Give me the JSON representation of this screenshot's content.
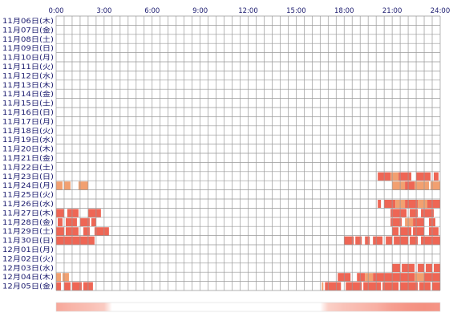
{
  "chart_data": {
    "type": "heatmap",
    "x_unit": "hour",
    "xlim": [
      0,
      24
    ],
    "x_ticks": [
      "0:00",
      "3:00",
      "6:00",
      "9:00",
      "12:00",
      "15:00",
      "18:00",
      "21:00",
      "24:00"
    ],
    "rows": [
      "11月06日(木)",
      "11月07日(金)",
      "11月08日(土)",
      "11月09日(日)",
      "11月10日(月)",
      "11月11日(火)",
      "11月12日(水)",
      "11月13日(木)",
      "11月14日(金)",
      "11月15日(土)",
      "11月16日(日)",
      "11月17日(月)",
      "11月18日(火)",
      "11月19日(水)",
      "11月20日(木)",
      "11月21日(金)",
      "11月22日(土)",
      "11月23日(日)",
      "11月24日(月)",
      "11月25日(火)",
      "11月26日(水)",
      "11月27日(木)",
      "11月28日(金)",
      "11月29日(土)",
      "11月30日(日)",
      "12月01日(月)",
      "12月02日(火)",
      "12月03日(水)",
      "12月04日(木)",
      "12月05日(金)"
    ],
    "colors": {
      "strong": "#ee6655",
      "light": "#f2a070",
      "grid": "#999999",
      "label": "#1a1a6e",
      "summary_low": "#fde6e0",
      "summary_high": "#f48c7c"
    },
    "activity": [
      {
        "row": 17,
        "start": 20.1,
        "end": 20.9,
        "level": "strong"
      },
      {
        "row": 17,
        "start": 20.9,
        "end": 21.4,
        "level": "light"
      },
      {
        "row": 17,
        "start": 21.4,
        "end": 22.2,
        "level": "strong"
      },
      {
        "row": 17,
        "start": 22.5,
        "end": 23.4,
        "level": "strong"
      },
      {
        "row": 17,
        "start": 23.6,
        "end": 23.9,
        "level": "strong"
      },
      {
        "row": 18,
        "start": 0.0,
        "end": 0.4,
        "level": "light"
      },
      {
        "row": 18,
        "start": 0.5,
        "end": 0.9,
        "level": "light"
      },
      {
        "row": 18,
        "start": 1.4,
        "end": 2.0,
        "level": "light"
      },
      {
        "row": 18,
        "start": 21.0,
        "end": 21.8,
        "level": "light"
      },
      {
        "row": 18,
        "start": 21.8,
        "end": 22.4,
        "level": "strong"
      },
      {
        "row": 18,
        "start": 22.4,
        "end": 23.3,
        "level": "light"
      },
      {
        "row": 18,
        "start": 23.4,
        "end": 24.0,
        "level": "light"
      },
      {
        "row": 20,
        "start": 20.1,
        "end": 20.3,
        "level": "strong"
      },
      {
        "row": 20,
        "start": 20.5,
        "end": 21.2,
        "level": "strong"
      },
      {
        "row": 20,
        "start": 21.2,
        "end": 21.8,
        "level": "light"
      },
      {
        "row": 20,
        "start": 21.8,
        "end": 22.6,
        "level": "strong"
      },
      {
        "row": 20,
        "start": 22.6,
        "end": 23.2,
        "level": "light"
      },
      {
        "row": 20,
        "start": 23.2,
        "end": 24.0,
        "level": "strong"
      },
      {
        "row": 21,
        "start": 0.0,
        "end": 0.5,
        "level": "strong"
      },
      {
        "row": 21,
        "start": 0.7,
        "end": 1.4,
        "level": "strong"
      },
      {
        "row": 21,
        "start": 2.0,
        "end": 2.8,
        "level": "strong"
      },
      {
        "row": 21,
        "start": 20.9,
        "end": 21.9,
        "level": "strong"
      },
      {
        "row": 21,
        "start": 22.1,
        "end": 22.6,
        "level": "strong"
      },
      {
        "row": 21,
        "start": 22.8,
        "end": 23.6,
        "level": "strong"
      },
      {
        "row": 22,
        "start": 0.1,
        "end": 0.4,
        "level": "strong"
      },
      {
        "row": 22,
        "start": 0.6,
        "end": 1.3,
        "level": "strong"
      },
      {
        "row": 22,
        "start": 1.5,
        "end": 2.1,
        "level": "strong"
      },
      {
        "row": 22,
        "start": 2.2,
        "end": 2.5,
        "level": "strong"
      },
      {
        "row": 22,
        "start": 20.9,
        "end": 21.6,
        "level": "strong"
      },
      {
        "row": 22,
        "start": 21.8,
        "end": 22.3,
        "level": "light"
      },
      {
        "row": 22,
        "start": 22.3,
        "end": 23.0,
        "level": "strong"
      },
      {
        "row": 22,
        "start": 23.3,
        "end": 23.7,
        "level": "strong"
      },
      {
        "row": 23,
        "start": 0.0,
        "end": 0.5,
        "level": "strong"
      },
      {
        "row": 23,
        "start": 0.6,
        "end": 1.4,
        "level": "strong"
      },
      {
        "row": 23,
        "start": 1.7,
        "end": 2.1,
        "level": "strong"
      },
      {
        "row": 23,
        "start": 2.4,
        "end": 3.3,
        "level": "strong"
      },
      {
        "row": 23,
        "start": 21.0,
        "end": 21.4,
        "level": "strong"
      },
      {
        "row": 23,
        "start": 21.5,
        "end": 22.2,
        "level": "strong"
      },
      {
        "row": 23,
        "start": 22.3,
        "end": 23.0,
        "level": "strong"
      },
      {
        "row": 23,
        "start": 23.3,
        "end": 23.9,
        "level": "strong"
      },
      {
        "row": 24,
        "start": 0.0,
        "end": 2.4,
        "level": "strong"
      },
      {
        "row": 24,
        "start": 18.0,
        "end": 18.6,
        "level": "strong"
      },
      {
        "row": 24,
        "start": 18.7,
        "end": 19.1,
        "level": "strong"
      },
      {
        "row": 24,
        "start": 19.3,
        "end": 19.6,
        "level": "strong"
      },
      {
        "row": 24,
        "start": 19.8,
        "end": 20.4,
        "level": "strong"
      },
      {
        "row": 24,
        "start": 20.6,
        "end": 21.0,
        "level": "strong"
      },
      {
        "row": 24,
        "start": 21.1,
        "end": 22.0,
        "level": "strong"
      },
      {
        "row": 24,
        "start": 22.1,
        "end": 22.6,
        "level": "strong"
      },
      {
        "row": 24,
        "start": 22.8,
        "end": 24.0,
        "level": "strong"
      },
      {
        "row": 27,
        "start": 21.0,
        "end": 21.5,
        "level": "strong"
      },
      {
        "row": 27,
        "start": 21.6,
        "end": 22.0,
        "level": "strong"
      },
      {
        "row": 27,
        "start": 22.0,
        "end": 22.4,
        "level": "strong"
      },
      {
        "row": 27,
        "start": 22.6,
        "end": 23.0,
        "level": "strong"
      },
      {
        "row": 27,
        "start": 23.1,
        "end": 23.5,
        "level": "strong"
      },
      {
        "row": 27,
        "start": 23.6,
        "end": 24.0,
        "level": "strong"
      },
      {
        "row": 28,
        "start": 0.0,
        "end": 0.3,
        "level": "light"
      },
      {
        "row": 28,
        "start": 0.4,
        "end": 0.8,
        "level": "light"
      },
      {
        "row": 28,
        "start": 17.6,
        "end": 18.4,
        "level": "strong"
      },
      {
        "row": 28,
        "start": 18.8,
        "end": 19.3,
        "level": "strong"
      },
      {
        "row": 28,
        "start": 19.3,
        "end": 19.8,
        "level": "light"
      },
      {
        "row": 28,
        "start": 19.8,
        "end": 21.0,
        "level": "strong"
      },
      {
        "row": 28,
        "start": 21.0,
        "end": 22.4,
        "level": "strong"
      },
      {
        "row": 28,
        "start": 22.4,
        "end": 23.0,
        "level": "light"
      },
      {
        "row": 28,
        "start": 23.0,
        "end": 24.0,
        "level": "strong"
      },
      {
        "row": 29,
        "start": 0.0,
        "end": 0.3,
        "level": "strong"
      },
      {
        "row": 29,
        "start": 0.5,
        "end": 0.9,
        "level": "strong"
      },
      {
        "row": 29,
        "start": 1.0,
        "end": 1.6,
        "level": "strong"
      },
      {
        "row": 29,
        "start": 1.7,
        "end": 2.3,
        "level": "strong"
      },
      {
        "row": 29,
        "start": 16.6,
        "end": 16.7,
        "level": "light"
      },
      {
        "row": 29,
        "start": 16.8,
        "end": 17.8,
        "level": "strong"
      },
      {
        "row": 29,
        "start": 18.1,
        "end": 19.1,
        "level": "strong"
      },
      {
        "row": 29,
        "start": 19.2,
        "end": 20.3,
        "level": "strong"
      },
      {
        "row": 29,
        "start": 20.4,
        "end": 21.4,
        "level": "strong"
      },
      {
        "row": 29,
        "start": 21.5,
        "end": 22.6,
        "level": "strong"
      },
      {
        "row": 29,
        "start": 22.7,
        "end": 23.4,
        "level": "strong"
      },
      {
        "row": 29,
        "start": 23.5,
        "end": 24.0,
        "level": "strong"
      }
    ],
    "summary_profile": [
      {
        "hour": 0.0,
        "intensity": 0.7
      },
      {
        "hour": 1.0,
        "intensity": 0.55
      },
      {
        "hour": 2.0,
        "intensity": 0.45
      },
      {
        "hour": 3.0,
        "intensity": 0.3
      },
      {
        "hour": 3.5,
        "intensity": 0.0
      },
      {
        "hour": 16.5,
        "intensity": 0.0
      },
      {
        "hour": 17.0,
        "intensity": 0.25
      },
      {
        "hour": 18.0,
        "intensity": 0.4
      },
      {
        "hour": 19.0,
        "intensity": 0.5
      },
      {
        "hour": 20.0,
        "intensity": 0.6
      },
      {
        "hour": 21.0,
        "intensity": 0.8
      },
      {
        "hour": 22.0,
        "intensity": 0.9
      },
      {
        "hour": 23.0,
        "intensity": 0.95
      },
      {
        "hour": 24.0,
        "intensity": 0.9
      }
    ]
  }
}
